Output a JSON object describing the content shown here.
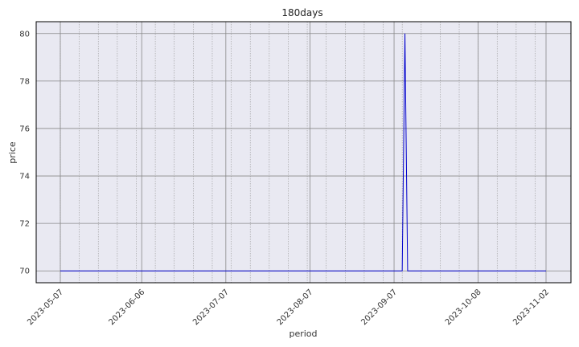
{
  "chart_data": {
    "type": "line",
    "title": "180days",
    "xlabel": "period",
    "ylabel": "price",
    "x_range": [
      "2023-05-07",
      "2023-11-02"
    ],
    "ylim": [
      69.5,
      80.5
    ],
    "y_ticks": [
      70,
      72,
      74,
      76,
      78,
      80
    ],
    "x_ticks": [
      "2023-05-07",
      "2023-06-06",
      "2023-07-07",
      "2023-08-07",
      "2023-09-07",
      "2023-10-08",
      "2023-11-02"
    ],
    "grid": true,
    "series": [
      {
        "color": "#0000cc",
        "x": [
          "2023-05-07",
          "2023-09-10",
          "2023-09-11",
          "2023-09-12",
          "2023-11-02"
        ],
        "values": [
          70,
          70,
          80,
          70,
          70
        ]
      }
    ],
    "colors": {
      "plot_bg": "#e9e9f2",
      "grid_major": "#888888",
      "grid_minor": "#999999",
      "line": "#0000cc"
    }
  }
}
